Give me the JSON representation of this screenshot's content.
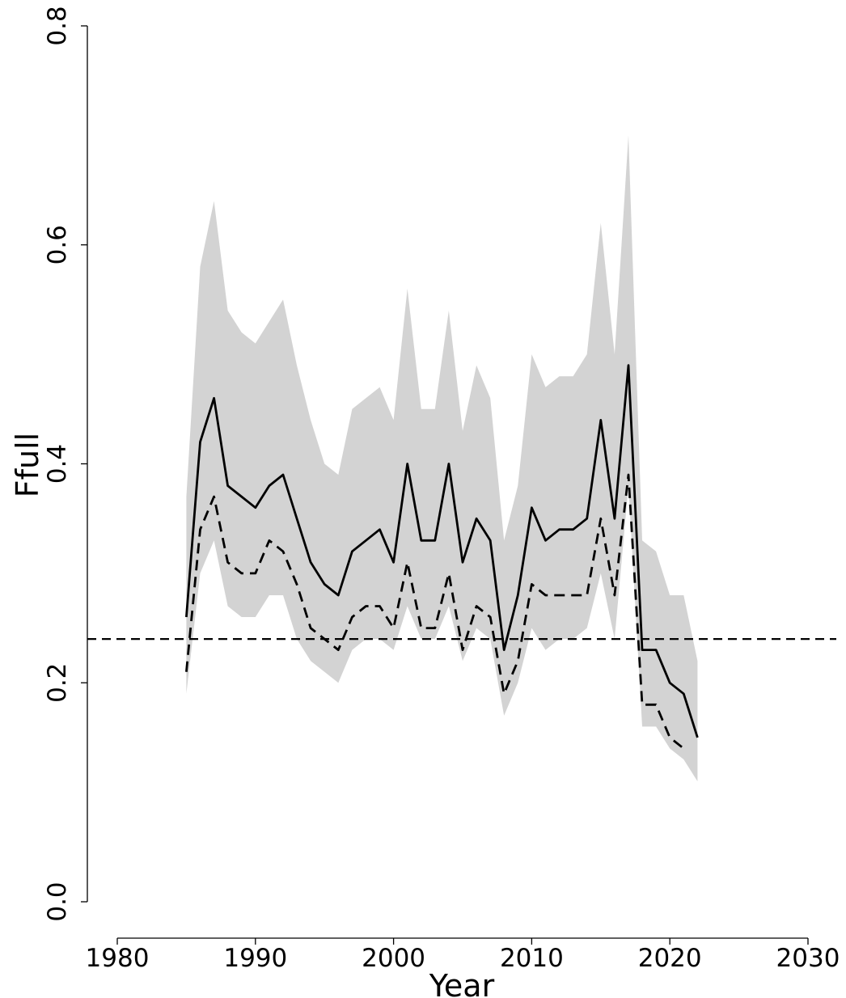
{
  "chart_data": {
    "type": "line",
    "title": "",
    "xlabel": "Year",
    "ylabel": "Ffull",
    "xlim": [
      1980,
      2030
    ],
    "ylim": [
      0.0,
      0.8
    ],
    "xticks": [
      1980,
      1990,
      2000,
      2010,
      2020,
      2030
    ],
    "xtick_labels": [
      "1980",
      "1990",
      "2000",
      "2010",
      "2020",
      "2030"
    ],
    "yticks": [
      0.0,
      0.2,
      0.4,
      0.6,
      0.8
    ],
    "ytick_labels": [
      "0.0",
      "0.2",
      "0.4",
      "0.6",
      "0.8"
    ],
    "grid": false,
    "legend": "none",
    "colors": {
      "band": "#d3d3d3",
      "line": "#000000"
    },
    "x": [
      1985,
      1986,
      1987,
      1988,
      1989,
      1990,
      1991,
      1992,
      1993,
      1994,
      1995,
      1996,
      1997,
      1998,
      1999,
      2000,
      2001,
      2002,
      2003,
      2004,
      2005,
      2006,
      2007,
      2008,
      2009,
      2010,
      2011,
      2012,
      2013,
      2014,
      2015,
      2016,
      2017,
      2018,
      2019,
      2020,
      2021,
      2022
    ],
    "band": {
      "upper": [
        0.37,
        0.58,
        0.64,
        0.54,
        0.52,
        0.51,
        0.53,
        0.55,
        0.49,
        0.44,
        0.4,
        0.39,
        0.45,
        0.46,
        0.47,
        0.44,
        0.56,
        0.45,
        0.45,
        0.54,
        0.43,
        0.49,
        0.46,
        0.33,
        0.38,
        0.5,
        0.47,
        0.48,
        0.48,
        0.5,
        0.62,
        0.5,
        0.7,
        0.33,
        0.32,
        0.28,
        0.28,
        0.22
      ],
      "lower": [
        0.19,
        0.3,
        0.33,
        0.27,
        0.26,
        0.26,
        0.28,
        0.28,
        0.24,
        0.22,
        0.21,
        0.2,
        0.23,
        0.24,
        0.24,
        0.23,
        0.27,
        0.24,
        0.24,
        0.27,
        0.22,
        0.25,
        0.24,
        0.17,
        0.2,
        0.25,
        0.23,
        0.24,
        0.24,
        0.25,
        0.3,
        0.24,
        0.38,
        0.16,
        0.16,
        0.14,
        0.13,
        0.11
      ]
    },
    "series": [
      {
        "style": "solid",
        "values": [
          0.26,
          0.42,
          0.46,
          0.38,
          0.37,
          0.36,
          0.38,
          0.39,
          0.35,
          0.31,
          0.29,
          0.28,
          0.32,
          0.33,
          0.34,
          0.31,
          0.4,
          0.33,
          0.33,
          0.4,
          0.31,
          0.35,
          0.33,
          0.23,
          0.28,
          0.36,
          0.33,
          0.34,
          0.34,
          0.35,
          0.44,
          0.35,
          0.49,
          0.23,
          0.23,
          0.2,
          0.19,
          0.15
        ]
      },
      {
        "style": "dashed",
        "values": [
          0.21,
          0.34,
          0.37,
          0.31,
          0.3,
          0.3,
          0.33,
          0.32,
          0.29,
          0.25,
          0.24,
          0.23,
          0.26,
          0.27,
          0.27,
          0.25,
          0.31,
          0.25,
          0.25,
          0.3,
          0.23,
          0.27,
          0.26,
          0.19,
          0.22,
          0.29,
          0.28,
          0.28,
          0.28,
          0.28,
          0.35,
          0.28,
          0.39,
          0.18,
          0.18,
          0.15,
          0.14,
          null
        ]
      }
    ],
    "reference_line": {
      "style": "dashed",
      "y": 0.24
    }
  }
}
